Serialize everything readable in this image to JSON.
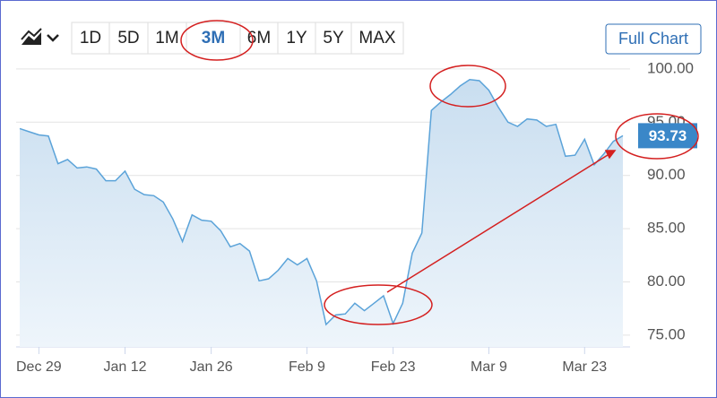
{
  "ui": {
    "ranges": [
      "1D",
      "5D",
      "1M",
      "3M",
      "6M",
      "1Y",
      "5Y",
      "MAX"
    ],
    "active_range": 3,
    "full_chart": "Full Chart"
  },
  "chart_data": {
    "type": "area",
    "color": "#5ba3d9",
    "categories": [
      null,
      null,
      "Dec 29",
      null,
      null,
      null,
      null,
      null,
      null,
      null,
      null,
      "Jan 12",
      null,
      null,
      null,
      null,
      null,
      null,
      null,
      null,
      "Jan 26",
      null,
      null,
      null,
      null,
      null,
      null,
      null,
      null,
      null,
      "Feb 9",
      null,
      null,
      null,
      null,
      null,
      null,
      null,
      null,
      "Feb 23",
      null,
      null,
      null,
      null,
      null,
      null,
      null,
      null,
      null,
      "Mar 9",
      null,
      null,
      null,
      null,
      null,
      null,
      null,
      null,
      null,
      "Mar 23",
      null,
      null,
      null,
      null
    ],
    "values": [
      94.4,
      94.1,
      93.8,
      93.7,
      91.1,
      91.5,
      90.7,
      90.8,
      90.6,
      89.5,
      89.5,
      90.4,
      88.7,
      88.2,
      88.1,
      87.5,
      85.9,
      83.8,
      86.3,
      85.8,
      85.7,
      84.8,
      83.3,
      83.6,
      82.9,
      80.1,
      80.3,
      81.1,
      82.2,
      81.6,
      82.2,
      80.1,
      76.0,
      76.9,
      77.0,
      78.0,
      77.3,
      78.0,
      78.7,
      76.1,
      78.0,
      82.7,
      84.6,
      96.1,
      96.9,
      97.6,
      98.4,
      99.0,
      98.9,
      98.0,
      96.4,
      95.0,
      94.6,
      95.3,
      95.2,
      94.6,
      94.8,
      91.8,
      91.9,
      93.4,
      91.0,
      92.0,
      93.2,
      93.73
    ],
    "ylim": [
      73.9,
      101
    ],
    "yticks": [
      {
        "value": 75,
        "label": "75.00"
      },
      {
        "value": 80,
        "label": "80.00"
      },
      {
        "value": 85,
        "label": "85.00"
      },
      {
        "value": 90,
        "label": "90.00"
      },
      {
        "value": 95,
        "label": "95.00"
      },
      {
        "value": 100,
        "label": "100.00"
      }
    ],
    "grid": true
  }
}
